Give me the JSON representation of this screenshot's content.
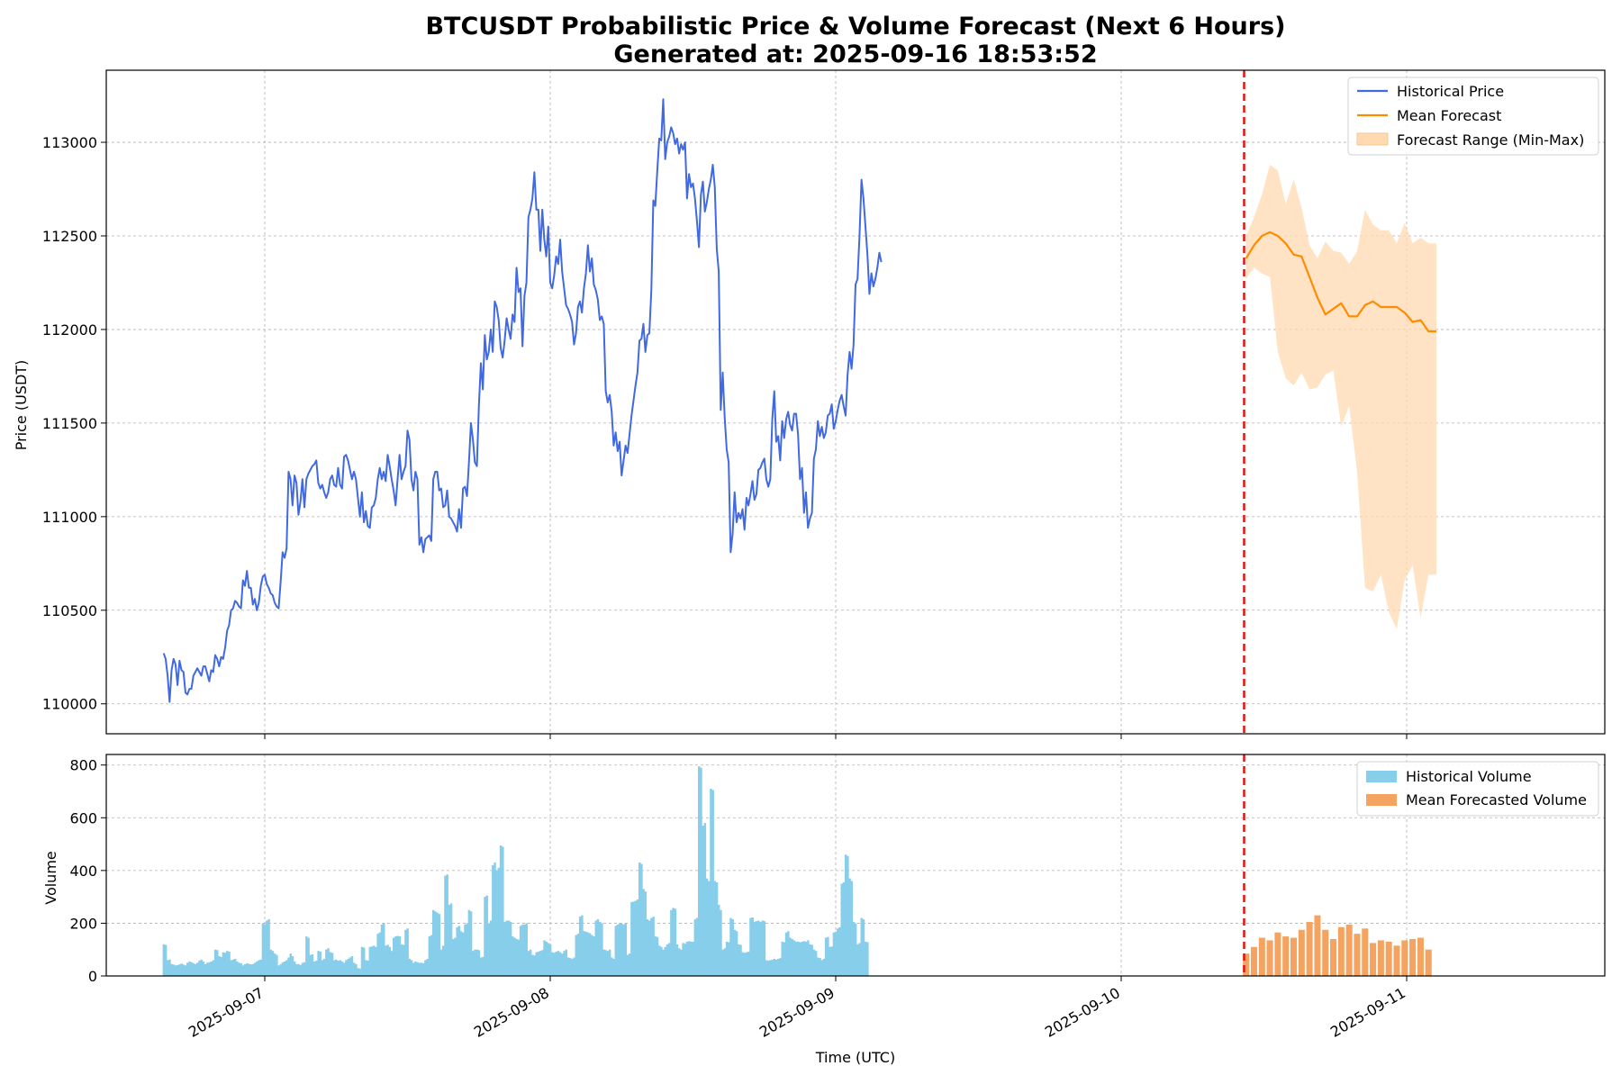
{
  "chart_data": [
    {
      "type": "line",
      "panel": "price",
      "title": "BTCUSDT Probabilistic Price & Volume Forecast (Next 6 Hours)",
      "subtitle": "Generated at: 2025-09-16 18:53:52",
      "xlabel": "",
      "ylabel": "Price (USDT)",
      "ylim": [
        109840,
        113385
      ],
      "yticks": [
        "110000",
        "110500",
        "111000",
        "111500",
        "112000",
        "112500",
        "113000"
      ],
      "forecast_start": "2025-09-10 10:20",
      "grid": true,
      "legend": "upper right",
      "series": [
        {
          "name": "Historical Price",
          "color": "#4169E1",
          "x_start": "2025-09-06 15:30",
          "x_step_minutes": 10,
          "values": [
            110270,
            110240,
            110150,
            110010,
            110180,
            110240,
            110210,
            110100,
            110230,
            110180,
            110170,
            110060,
            110050,
            110080,
            110080,
            110150,
            110170,
            110190,
            110170,
            110150,
            110200,
            110200,
            110160,
            110120,
            110180,
            110170,
            110260,
            110240,
            110200,
            110250,
            110240,
            110300,
            110390,
            110420,
            110500,
            110510,
            110550,
            110540,
            110520,
            110510,
            110660,
            110630,
            110710,
            110620,
            110620,
            110530,
            110560,
            110500,
            110540,
            110630,
            110680,
            110690,
            110640,
            110620,
            110590,
            110580,
            110540,
            110520,
            110510,
            110650,
            110810,
            110780,
            110830,
            111240,
            111200,
            111060,
            111220,
            111180,
            111010,
            111080,
            111200,
            111050,
            111200,
            111230,
            111250,
            111270,
            111280,
            111300,
            111180,
            111150,
            111170,
            111130,
            111100,
            111130,
            111200,
            111220,
            111170,
            111160,
            111260,
            111170,
            111150,
            111320,
            111330,
            111300,
            111250,
            111200,
            111240,
            111200,
            111100,
            111000,
            111130,
            110970,
            111030,
            110950,
            110940,
            111050,
            111060,
            111100,
            111200,
            111260,
            111200,
            111240,
            111190,
            111330,
            111270,
            111200,
            111140,
            111060,
            111200,
            111330,
            111200,
            111240,
            111270,
            111460,
            111410,
            111200,
            111140,
            111240,
            111200,
            110850,
            110890,
            110810,
            110880,
            110890,
            110900,
            110870,
            111200,
            111240,
            111240,
            111140,
            111150,
            111050,
            111060,
            111140,
            111000,
            110990,
            110970,
            110950,
            110920,
            111040,
            110940,
            111150,
            111160,
            111110,
            111290,
            111500,
            111410,
            111290,
            111270,
            111590,
            111820,
            111680,
            111970,
            111840,
            111880,
            112000,
            111880,
            112150,
            112120,
            112050,
            111900,
            111850,
            111940,
            112060,
            112000,
            111950,
            112080,
            112040,
            112330,
            112200,
            112220,
            111910,
            112180,
            112250,
            112600,
            112640,
            112700,
            112840,
            112640,
            112640,
            112420,
            112640,
            112480,
            112390,
            112550,
            112250,
            112220,
            112290,
            112390,
            112350,
            112480,
            112310,
            112220,
            112130,
            112110,
            112080,
            112040,
            111920,
            111980,
            112120,
            112150,
            112090,
            112220,
            112300,
            112450,
            112310,
            112380,
            112240,
            112210,
            112160,
            112050,
            112070,
            112030,
            111670,
            111610,
            111650,
            111560,
            111380,
            111450,
            111350,
            111400,
            111220,
            111300,
            111380,
            111340,
            111440,
            111540,
            111620,
            111700,
            111770,
            111940,
            111950,
            112030,
            111880,
            111970,
            111980,
            112210,
            112690,
            112660,
            112850,
            113020,
            113010,
            113230,
            112910,
            113000,
            113030,
            113080,
            113050,
            112990,
            113020,
            112940,
            112990,
            112960,
            113000,
            112700,
            112830,
            112760,
            112780,
            112700,
            112580,
            112440,
            112720,
            112790,
            112630,
            112680,
            112750,
            112800,
            112880,
            112760,
            112430,
            112310,
            111570,
            111770,
            111530,
            111360,
            111290,
            110810,
            110910,
            111130,
            110970,
            111020,
            110990,
            111040,
            110930,
            111100,
            111060,
            111120,
            111190,
            111090,
            111120,
            111250,
            111260,
            111290,
            111310,
            111200,
            111160,
            111200,
            111520,
            111670,
            111400,
            111430,
            111300,
            111510,
            111420,
            111520,
            111560,
            111490,
            111460,
            111550,
            111550,
            111440,
            111200,
            111260,
            111020,
            111130,
            110940,
            110990,
            111020,
            111310,
            111360,
            111510,
            111430,
            111480,
            111420,
            111450,
            111540,
            111550,
            111600,
            111470,
            111510,
            111570,
            111620,
            111650,
            111590,
            111540,
            111760,
            111880,
            111790,
            111920,
            112240,
            112270,
            112500,
            112800,
            112700,
            112550,
            112400,
            112190,
            112300,
            112230,
            112270,
            112330,
            112410,
            112360
          ]
        },
        {
          "name": "Mean Forecast",
          "color": "#FF8C00",
          "x_start": "2025-09-10 10:30",
          "x_step_minutes": 40,
          "values": [
            112380,
            112450,
            112500,
            112520,
            112500,
            112460,
            112400,
            112390,
            112280,
            112170,
            112080,
            112110,
            112140,
            112070,
            112070,
            112130,
            112150,
            112120,
            112120,
            112120,
            112090,
            112040,
            112050,
            111990,
            111990
          ]
        },
        {
          "name": "Forecast Range (Min-Max)",
          "color": "#FFDAB0",
          "x_start": "2025-09-10 10:30",
          "x_step_minutes": 40,
          "upper": [
            112500,
            112600,
            112720,
            112880,
            112850,
            112670,
            112800,
            112650,
            112450,
            112380,
            112470,
            112420,
            112410,
            112350,
            112420,
            112640,
            112560,
            112530,
            112530,
            112460,
            112570,
            112460,
            112490,
            112460,
            112460
          ],
          "lower": [
            112270,
            112330,
            112300,
            112280,
            111880,
            111740,
            111700,
            111770,
            111680,
            111690,
            111760,
            111780,
            111480,
            111590,
            111240,
            110620,
            110600,
            110690,
            110490,
            110400,
            110660,
            110740,
            110460,
            110690,
            110690
          ]
        }
      ]
    },
    {
      "type": "bar",
      "panel": "volume",
      "xlabel": "Time (UTC)",
      "ylabel": "Volume",
      "ylim": [
        0,
        840
      ],
      "yticks": [
        "0",
        "200",
        "400",
        "600",
        "800"
      ],
      "xticks": [
        "2025-09-07",
        "2025-09-08",
        "2025-09-09",
        "2025-09-10",
        "2025-09-11"
      ],
      "grid": true,
      "legend": "upper right",
      "series": [
        {
          "name": "Historical Volume",
          "color": "#87CEEB",
          "x_start": "2025-09-06 15:30",
          "x_step_minutes": 10,
          "values": [
            120,
            118,
            60,
            62,
            45,
            43,
            40,
            41,
            44,
            47,
            43,
            40,
            50,
            55,
            52,
            48,
            45,
            50,
            58,
            62,
            55,
            45,
            50,
            52,
            55,
            60,
            100,
            98,
            75,
            72,
            90,
            88,
            95,
            92,
            60,
            62,
            65,
            55,
            50,
            48,
            40,
            45,
            48,
            46,
            44,
            45,
            50,
            55,
            60,
            62,
            200,
            195,
            210,
            215,
            100,
            95,
            85,
            80,
            40,
            45,
            52,
            55,
            60,
            70,
            85,
            75,
            55,
            45,
            45,
            42,
            50,
            52,
            150,
            145,
            80,
            82,
            55,
            58,
            95,
            92,
            60,
            65,
            100,
            105,
            90,
            88,
            60,
            62,
            58,
            60,
            55,
            50,
            60,
            65,
            70,
            75,
            50,
            45,
            30,
            28,
            110,
            108,
            60,
            58,
            110,
            112,
            115,
            110,
            160,
            165,
            195,
            200,
            115,
            118,
            110,
            95,
            145,
            150,
            152,
            150,
            120,
            118,
            175,
            180,
            65,
            60,
            50,
            55,
            52,
            50,
            50,
            48,
            60,
            65,
            150,
            155,
            250,
            245,
            240,
            235,
            100,
            115,
            380,
            385,
            270,
            275,
            140,
            145,
            185,
            190,
            170,
            165,
            195,
            200,
            250,
            245,
            95,
            100,
            100,
            98,
            70,
            72,
            300,
            305,
            200,
            210,
            420,
            430,
            400,
            410,
            495,
            490,
            205,
            210,
            210,
            205,
            150,
            145,
            140,
            138,
            190,
            195,
            195,
            200,
            95,
            100,
            80,
            78,
            90,
            92,
            95,
            98,
            135,
            130,
            125,
            120,
            90,
            88,
            92,
            95,
            90,
            85,
            95,
            100,
            70,
            68,
            65,
            70,
            155,
            160,
            225,
            230,
            170,
            168,
            165,
            162,
            155,
            150,
            210,
            215,
            205,
            200,
            100,
            98,
            95,
            100,
            70,
            65,
            190,
            195,
            200,
            198,
            195,
            200,
            80,
            85,
            280,
            282,
            285,
            290,
            430,
            425,
            330,
            320,
            215,
            210,
            220,
            225,
            150,
            148,
            115,
            110,
            100,
            110,
            120,
            125,
            250,
            258,
            255,
            120,
            105,
            100,
            125,
            122,
            130,
            132,
            130,
            130,
            215,
            220,
            795,
            790,
            570,
            580,
            370,
            360,
            710,
            705,
            360,
            355,
            270,
            250,
            100,
            105,
            130,
            128,
            220,
            215,
            175,
            170,
            120,
            118,
            90,
            88,
            90,
            92,
            220,
            222,
            205,
            208,
            210,
            205,
            210,
            208,
            60,
            58,
            60,
            62,
            65,
            62,
            65,
            68,
            130,
            128,
            165,
            170,
            145,
            140,
            135,
            130,
            130,
            128,
            130,
            132,
            130,
            135,
            120,
            118,
            100,
            95,
            70,
            68,
            60,
            65,
            145,
            148,
            110,
            112,
            165,
            168,
            180,
            185,
            350,
            355,
            460,
            455,
            370,
            360,
            205,
            200,
            120,
            125,
            220,
            215,
            130,
            128
          ]
        },
        {
          "name": "Mean Forecasted Volume",
          "color": "#F4A460",
          "x_start": "2025-09-10 10:30",
          "x_step_minutes": 40,
          "values": [
            85,
            110,
            145,
            135,
            165,
            150,
            145,
            175,
            205,
            230,
            175,
            140,
            185,
            195,
            160,
            180,
            125,
            135,
            130,
            115,
            135,
            140,
            145,
            100
          ]
        }
      ]
    }
  ]
}
